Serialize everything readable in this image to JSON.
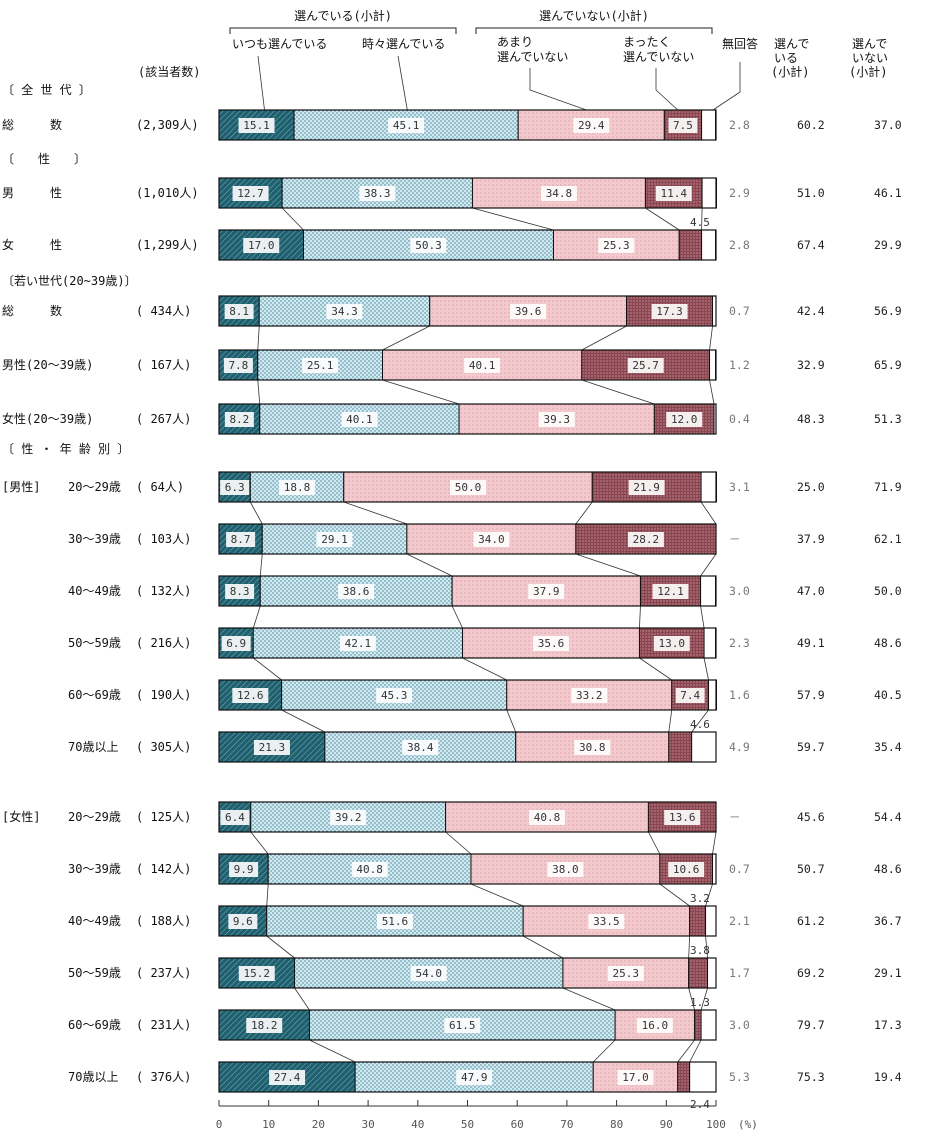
{
  "chart_data": {
    "type": "bar",
    "stacked": true,
    "orientation": "horizontal",
    "xlim": [
      0,
      100
    ],
    "x_unit": "(%)",
    "ticks": [
      "0",
      "10",
      "20",
      "30",
      "40",
      "50",
      "60",
      "70",
      "80",
      "90",
      "100"
    ],
    "headers": {
      "group_selected": "選んでいる(小計)",
      "group_not_selected": "選んでいない(小計)",
      "seg_always": "いつも選んでいる",
      "seg_sometimes": "時々選んでいる",
      "seg_rarely_1": "あまり",
      "seg_rarely_2": "選んでいない",
      "seg_never_1": "まったく",
      "seg_never_2": "選んでいない",
      "seg_noanswer": "無回答",
      "col_selected_1": "選んで",
      "col_selected_2": "いる",
      "col_selected_3": "(小計)",
      "col_not_1": "選んで",
      "col_not_2": "いない",
      "col_not_3": "(小計)",
      "count_header": "(該当者数)"
    },
    "sections": {
      "all": "〔 全 世 代 〕",
      "sex": "〔　　性　　〕",
      "young": "〔若い世代(20~39歳)〕",
      "sexage": "〔 性 ・ 年 齢 別 〕",
      "male": "[男性]",
      "female": "[女性]"
    },
    "series": [
      {
        "name": "いつも選んでいる",
        "color": "#1f5f6e"
      },
      {
        "name": "時々選んでいる",
        "color": "#c9e3ec"
      },
      {
        "name": "あまり選んでいない",
        "color": "#f0c4c8"
      },
      {
        "name": "まったく選んでいない",
        "color": "#8a4650"
      },
      {
        "name": "無回答",
        "color": "#ffffff"
      }
    ],
    "rows": [
      {
        "label": "総　　　数",
        "group": "",
        "n": "(2,309人)",
        "values": [
          15.1,
          45.1,
          29.4,
          7.5,
          2.8
        ],
        "labels": [
          "15.1",
          "45.1",
          "29.4",
          "7.5",
          "2.8"
        ],
        "sel": "60.2",
        "not_sel": "37.0"
      },
      {
        "label": "男　　　性",
        "group": "",
        "n": "(1,010人)",
        "values": [
          12.7,
          38.3,
          34.8,
          11.4,
          2.9
        ],
        "labels": [
          "12.7",
          "38.3",
          "34.8",
          "11.4",
          "2.9"
        ],
        "sel": "51.0",
        "not_sel": "46.1"
      },
      {
        "label": "女　　　性",
        "group": "",
        "n": "(1,299人)",
        "values": [
          17.0,
          50.3,
          25.3,
          4.5,
          2.8
        ],
        "labels": [
          "17.0",
          "50.3",
          "25.3",
          "4.5",
          "2.8"
        ],
        "sel": "67.4",
        "not_sel": "29.9"
      },
      {
        "label": "総　　　数",
        "group": "",
        "n": "( 434人)",
        "values": [
          8.1,
          34.3,
          39.6,
          17.3,
          0.7
        ],
        "labels": [
          "8.1",
          "34.3",
          "39.6",
          "17.3",
          "0.7"
        ],
        "sel": "42.4",
        "not_sel": "56.9"
      },
      {
        "label": "男性(20～39歳)",
        "group": "",
        "n": "( 167人)",
        "values": [
          7.8,
          25.1,
          40.1,
          25.7,
          1.2
        ],
        "labels": [
          "7.8",
          "25.1",
          "40.1",
          "25.7",
          "1.2"
        ],
        "sel": "32.9",
        "not_sel": "65.9"
      },
      {
        "label": "女性(20～39歳)",
        "group": "",
        "n": "( 267人)",
        "values": [
          8.2,
          40.1,
          39.3,
          12.0,
          0.4
        ],
        "labels": [
          "8.2",
          "40.1",
          "39.3",
          "12.0",
          "0.4"
        ],
        "sel": "48.3",
        "not_sel": "51.3"
      },
      {
        "label": "20～29歳",
        "group": "[男性]",
        "n": "(  64人)",
        "values": [
          6.3,
          18.8,
          50.0,
          21.9,
          3.1
        ],
        "labels": [
          "6.3",
          "18.8",
          "50.0",
          "21.9",
          "3.1"
        ],
        "sel": "25.0",
        "not_sel": "71.9"
      },
      {
        "label": "30～39歳",
        "group": "",
        "n": "( 103人)",
        "values": [
          8.7,
          29.1,
          34.0,
          28.2,
          0
        ],
        "labels": [
          "8.7",
          "29.1",
          "34.0",
          "28.2",
          "－"
        ],
        "sel": "37.9",
        "not_sel": "62.1"
      },
      {
        "label": "40～49歳",
        "group": "",
        "n": "( 132人)",
        "values": [
          8.3,
          38.6,
          37.9,
          12.1,
          3.0
        ],
        "labels": [
          "8.3",
          "38.6",
          "37.9",
          "12.1",
          "3.0"
        ],
        "sel": "47.0",
        "not_sel": "50.0"
      },
      {
        "label": "50～59歳",
        "group": "",
        "n": "( 216人)",
        "values": [
          6.9,
          42.1,
          35.6,
          13.0,
          2.3
        ],
        "labels": [
          "6.9",
          "42.1",
          "35.6",
          "13.0",
          "2.3"
        ],
        "sel": "49.1",
        "not_sel": "48.6"
      },
      {
        "label": "60～69歳",
        "group": "",
        "n": "( 190人)",
        "values": [
          12.6,
          45.3,
          33.2,
          7.4,
          1.6
        ],
        "labels": [
          "12.6",
          "45.3",
          "33.2",
          "7.4",
          "1.6"
        ],
        "sel": "57.9",
        "not_sel": "40.5"
      },
      {
        "label": "70歳以上",
        "group": "",
        "n": "( 305人)",
        "values": [
          21.3,
          38.4,
          30.8,
          4.6,
          4.9
        ],
        "labels": [
          "21.3",
          "38.4",
          "30.8",
          "4.6",
          "4.9"
        ],
        "sel": "59.7",
        "not_sel": "35.4"
      },
      {
        "label": "20～29歳",
        "group": "[女性]",
        "n": "( 125人)",
        "values": [
          6.4,
          39.2,
          40.8,
          13.6,
          0
        ],
        "labels": [
          "6.4",
          "39.2",
          "40.8",
          "13.6",
          "－"
        ],
        "sel": "45.6",
        "not_sel": "54.4"
      },
      {
        "label": "30～39歳",
        "group": "",
        "n": "( 142人)",
        "values": [
          9.9,
          40.8,
          38.0,
          10.6,
          0.7
        ],
        "labels": [
          "9.9",
          "40.8",
          "38.0",
          "10.6",
          "0.7"
        ],
        "sel": "50.7",
        "not_sel": "48.6"
      },
      {
        "label": "40～49歳",
        "group": "",
        "n": "( 188人)",
        "values": [
          9.6,
          51.6,
          33.5,
          3.2,
          2.1
        ],
        "labels": [
          "9.6",
          "51.6",
          "33.5",
          "3.2",
          "2.1"
        ],
        "sel": "61.2",
        "not_sel": "36.7"
      },
      {
        "label": "50～59歳",
        "group": "",
        "n": "( 237人)",
        "values": [
          15.2,
          54.0,
          25.3,
          3.8,
          1.7
        ],
        "labels": [
          "15.2",
          "54.0",
          "25.3",
          "3.8",
          "1.7"
        ],
        "sel": "69.2",
        "not_sel": "29.1"
      },
      {
        "label": "60～69歳",
        "group": "",
        "n": "( 231人)",
        "values": [
          18.2,
          61.5,
          16.0,
          1.3,
          3.0
        ],
        "labels": [
          "18.2",
          "61.5",
          "16.0",
          "1.3",
          "3.0"
        ],
        "sel": "79.7",
        "not_sel": "17.3"
      },
      {
        "label": "70歳以上",
        "group": "",
        "n": "( 376人)",
        "values": [
          27.4,
          47.9,
          17.0,
          2.4,
          5.3
        ],
        "labels": [
          "27.4",
          "47.9",
          "17.0",
          "2.4",
          "5.3"
        ],
        "sel": "75.3",
        "not_sel": "19.4"
      }
    ]
  }
}
